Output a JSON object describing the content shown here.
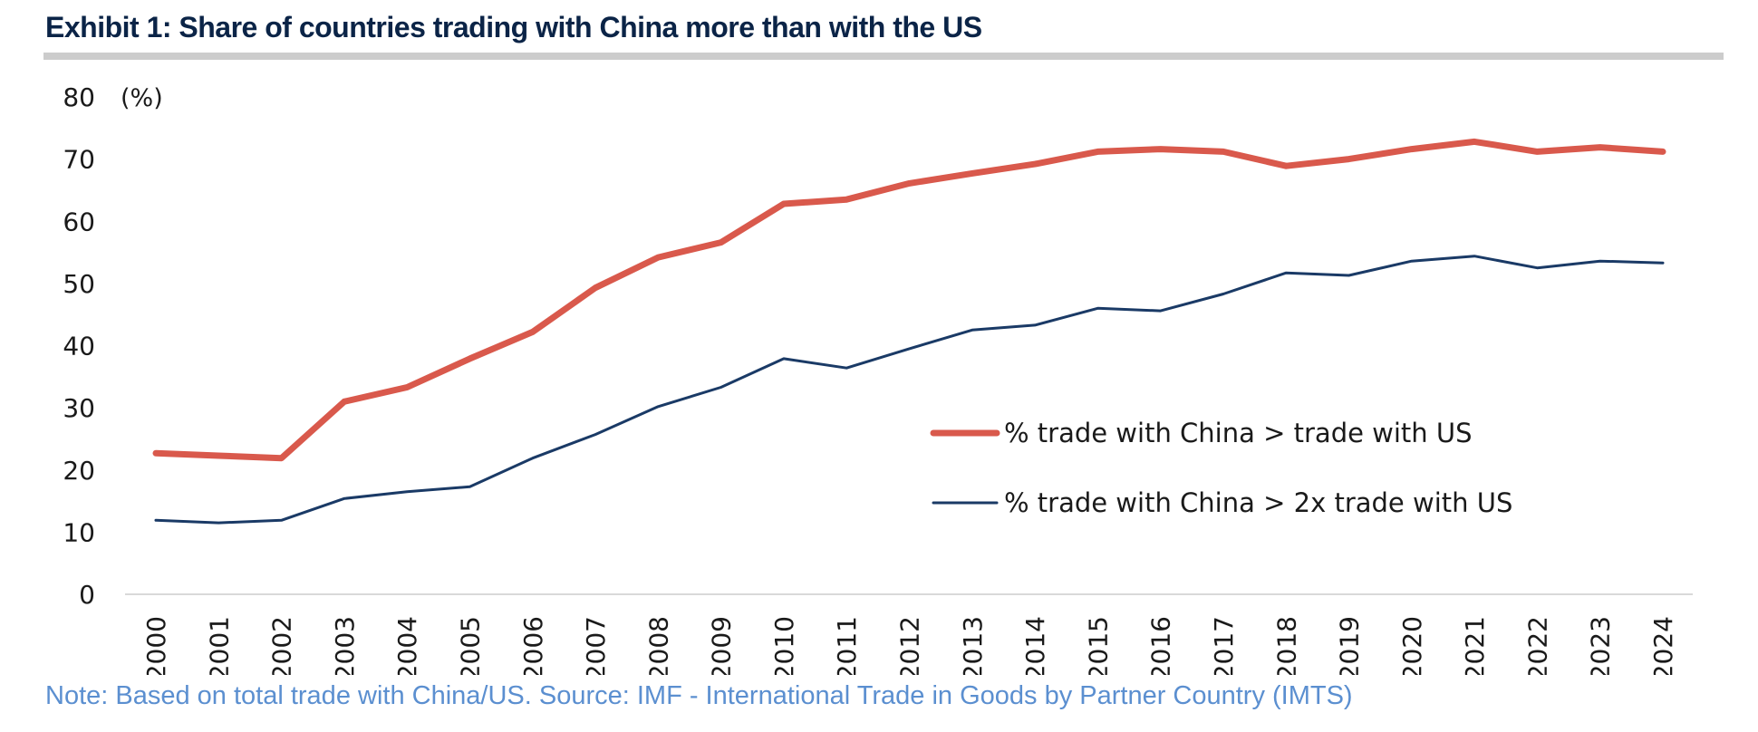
{
  "header": {
    "title": "Exhibit 1: Share of countries trading with China more than with the US"
  },
  "footer": {
    "note": "Note: Based on total trade with China/US. Source: IMF - International Trade in Goods by Partner Country (IMTS)"
  },
  "chart_data": {
    "type": "line",
    "title": "Exhibit 1: Share of countries trading with China more than with the US",
    "xlabel": "",
    "ylabel": "(%)",
    "ylim": [
      0,
      80
    ],
    "yticks": [
      0,
      10,
      20,
      30,
      40,
      50,
      60,
      70,
      80
    ],
    "grid": false,
    "legend_position": "center-right",
    "x": [
      "2000",
      "2001",
      "2002",
      "2003",
      "2004",
      "2005",
      "2006",
      "2007",
      "2008",
      "2009",
      "2010",
      "2011",
      "2012",
      "2013",
      "2014",
      "2015",
      "2016",
      "2017",
      "2018",
      "2019",
      "2020",
      "2021",
      "2022",
      "2023",
      "2024"
    ],
    "series": [
      {
        "name": "% trade with China > trade with US",
        "color": "#d9594c",
        "values": [
          22.7,
          22.3,
          21.9,
          31.0,
          33.3,
          37.9,
          42.2,
          49.3,
          54.2,
          56.6,
          62.8,
          63.5,
          66.1,
          67.7,
          69.2,
          71.2,
          71.6,
          71.2,
          68.9,
          70.0,
          71.6,
          72.8,
          71.2,
          71.9,
          71.2
        ]
      },
      {
        "name": "% trade with China > 2x trade with US",
        "color": "#1a3a66",
        "values": [
          11.9,
          11.5,
          11.9,
          15.4,
          16.5,
          17.3,
          21.9,
          25.7,
          30.2,
          33.3,
          37.9,
          36.4,
          39.5,
          42.5,
          43.3,
          46.0,
          45.6,
          48.3,
          51.7,
          51.3,
          53.6,
          54.4,
          52.5,
          53.6,
          53.3
        ]
      }
    ]
  }
}
